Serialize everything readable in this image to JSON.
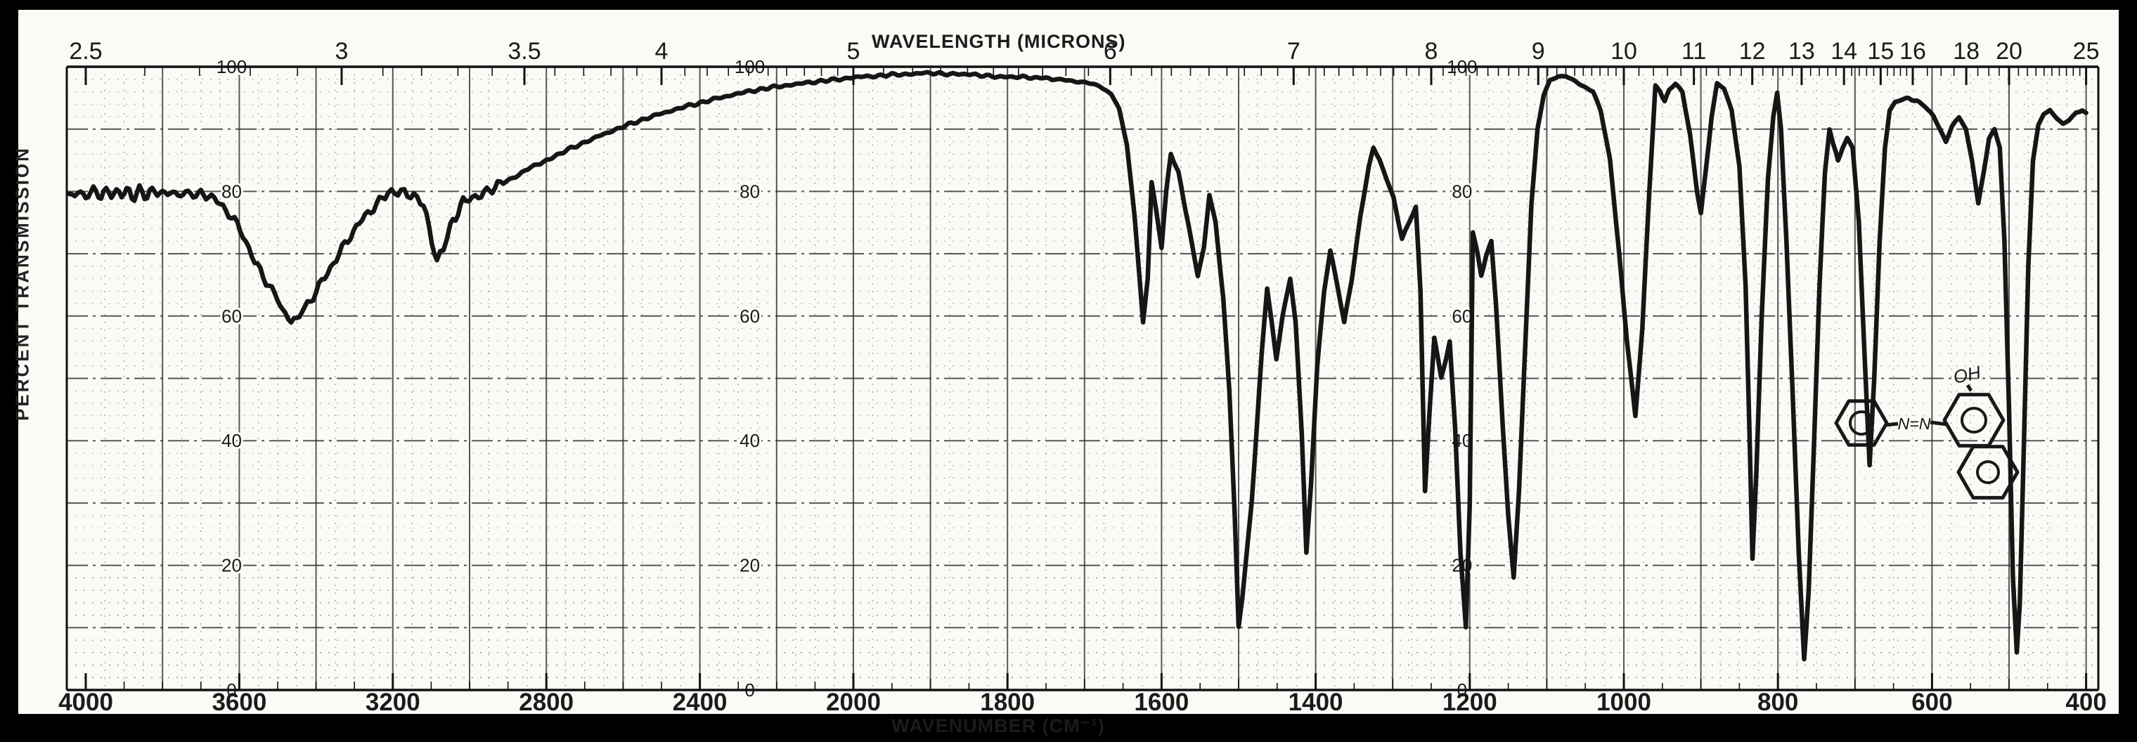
{
  "colors": {
    "paper": "#fbfaf6",
    "surround": "#000000",
    "trace": "#161616",
    "grid_major": "#2e2e2e",
    "grid_minor": "#555555",
    "label_ink": "#1b1b1b"
  },
  "chart_data": {
    "type": "line",
    "title_top": "WAVELENGTH (MICRONS)",
    "title_bottom": "WAVENUMBER (CM⁻¹)",
    "ylabel": "PERCENT TRANSMISSION",
    "grid": "on",
    "xlim_wavenumber": [
      4000,
      400
    ],
    "ylim": [
      0,
      100
    ],
    "x_scale_note": "linear in wavenumber, chart expands 2x at 2000 cm-1",
    "scale_change_at": 2000,
    "x_axis_top_microns": [
      2.5,
      3,
      3.5,
      4,
      5,
      6,
      7,
      8,
      9,
      10,
      11,
      12,
      13,
      14,
      15,
      16,
      18,
      20,
      25
    ],
    "x_axis_bottom_wavenumbers": [
      4000,
      3600,
      3200,
      2800,
      2400,
      2000,
      1800,
      1600,
      1400,
      1200,
      1000,
      800,
      600,
      400
    ],
    "y_tick_labels": [
      100,
      80,
      60,
      40,
      20,
      0
    ],
    "y_label_column_wavenumbers": [
      3620,
      2270,
      1210
    ],
    "major_absorption_bands_cm1": [
      [
        3465,
        59
      ],
      [
        3085,
        68
      ],
      [
        1624,
        59
      ],
      [
        1600,
        71
      ],
      [
        1553,
        66
      ],
      [
        1500,
        10
      ],
      [
        1451,
        53
      ],
      [
        1412,
        22
      ],
      [
        1363,
        59
      ],
      [
        1288,
        72
      ],
      [
        1258,
        32
      ],
      [
        1237,
        50
      ],
      [
        1205,
        10
      ],
      [
        1143,
        18
      ],
      [
        985,
        44
      ],
      [
        900,
        76
      ],
      [
        833,
        21
      ],
      [
        766,
        5
      ],
      [
        681,
        36
      ],
      [
        582,
        88
      ],
      [
        540,
        78
      ],
      [
        490,
        6
      ]
    ],
    "series": [
      {
        "name": "IR transmission trace",
        "points": [
          [
            4045,
            79
          ],
          [
            4020,
            79.8
          ],
          [
            4000,
            79.2
          ],
          [
            3980,
            80.2
          ],
          [
            3960,
            79.3
          ],
          [
            3940,
            80.1
          ],
          [
            3920,
            79.4
          ],
          [
            3900,
            80.2
          ],
          [
            3880,
            79.2
          ],
          [
            3860,
            80.0
          ],
          [
            3840,
            79.4
          ],
          [
            3820,
            80.2
          ],
          [
            3800,
            79.5
          ],
          [
            3780,
            80.0
          ],
          [
            3760,
            79.3
          ],
          [
            3740,
            79.9
          ],
          [
            3720,
            79.4
          ],
          [
            3700,
            79.7
          ],
          [
            3680,
            79.2
          ],
          [
            3650,
            77.8
          ],
          [
            3620,
            75.8
          ],
          [
            3590,
            72.8
          ],
          [
            3560,
            68.5
          ],
          [
            3530,
            65.5
          ],
          [
            3500,
            62.5
          ],
          [
            3480,
            60.3
          ],
          [
            3465,
            59.2
          ],
          [
            3450,
            59.7
          ],
          [
            3430,
            61.2
          ],
          [
            3400,
            64.0
          ],
          [
            3370,
            67.0
          ],
          [
            3340,
            70.0
          ],
          [
            3310,
            73.0
          ],
          [
            3280,
            75.5
          ],
          [
            3250,
            77.5
          ],
          [
            3220,
            79.2
          ],
          [
            3195,
            80.2
          ],
          [
            3170,
            80.1
          ],
          [
            3145,
            79.4
          ],
          [
            3120,
            77.8
          ],
          [
            3105,
            74.0
          ],
          [
            3085,
            68.5
          ],
          [
            3068,
            70.8
          ],
          [
            3050,
            74.0
          ],
          [
            3030,
            77.0
          ],
          [
            3010,
            78.6
          ],
          [
            2985,
            79.4
          ],
          [
            2955,
            80.0
          ],
          [
            2920,
            81.0
          ],
          [
            2880,
            82.5
          ],
          [
            2840,
            83.8
          ],
          [
            2800,
            85.0
          ],
          [
            2750,
            86.5
          ],
          [
            2700,
            87.9
          ],
          [
            2650,
            89.2
          ],
          [
            2600,
            90.4
          ],
          [
            2550,
            91.5
          ],
          [
            2500,
            92.5
          ],
          [
            2450,
            93.4
          ],
          [
            2400,
            94.2
          ],
          [
            2350,
            95.0
          ],
          [
            2300,
            95.7
          ],
          [
            2250,
            96.3
          ],
          [
            2200,
            96.8
          ],
          [
            2150,
            97.2
          ],
          [
            2100,
            97.6
          ],
          [
            2050,
            97.9
          ],
          [
            2000,
            98.3
          ],
          [
            1950,
            98.7
          ],
          [
            1900,
            99.0
          ],
          [
            1860,
            98.8
          ],
          [
            1820,
            98.5
          ],
          [
            1780,
            98.3
          ],
          [
            1750,
            98.1
          ],
          [
            1720,
            97.8
          ],
          [
            1700,
            97.5
          ],
          [
            1680,
            96.9
          ],
          [
            1665,
            95.6
          ],
          [
            1655,
            93.2
          ],
          [
            1645,
            87.5
          ],
          [
            1635,
            76.0
          ],
          [
            1624,
            59.0
          ],
          [
            1618,
            66.0
          ],
          [
            1613,
            81.5
          ],
          [
            1607,
            77.0
          ],
          [
            1600,
            71.0
          ],
          [
            1594,
            80.0
          ],
          [
            1588,
            86.0
          ],
          [
            1578,
            83.0
          ],
          [
            1565,
            74.5
          ],
          [
            1553,
            66.5
          ],
          [
            1545,
            71.0
          ],
          [
            1538,
            79.5
          ],
          [
            1530,
            75.0
          ],
          [
            1520,
            63.0
          ],
          [
            1512,
            48.0
          ],
          [
            1505,
            28.0
          ],
          [
            1500,
            10.0
          ],
          [
            1495,
            15.0
          ],
          [
            1488,
            24.0
          ],
          [
            1483,
            30.0
          ],
          [
            1477,
            41.0
          ],
          [
            1470,
            54.0
          ],
          [
            1463,
            64.5
          ],
          [
            1457,
            59.0
          ],
          [
            1451,
            53.0
          ],
          [
            1443,
            60.0
          ],
          [
            1433,
            66.0
          ],
          [
            1426,
            59.0
          ],
          [
            1418,
            41.0
          ],
          [
            1412,
            22.0
          ],
          [
            1406,
            33.0
          ],
          [
            1398,
            52.0
          ],
          [
            1389,
            64.0
          ],
          [
            1381,
            70.5
          ],
          [
            1372,
            65.0
          ],
          [
            1363,
            59.0
          ],
          [
            1353,
            66.0
          ],
          [
            1342,
            76.0
          ],
          [
            1331,
            84.0
          ],
          [
            1325,
            87.0
          ],
          [
            1317,
            85.0
          ],
          [
            1308,
            82.0
          ],
          [
            1299,
            79.0
          ],
          [
            1288,
            72.5
          ],
          [
            1279,
            75.0
          ],
          [
            1270,
            77.5
          ],
          [
            1264,
            64.0
          ],
          [
            1258,
            32.0
          ],
          [
            1252,
            45.0
          ],
          [
            1246,
            56.5
          ],
          [
            1241,
            53.0
          ],
          [
            1237,
            50.0
          ],
          [
            1231,
            53.0
          ],
          [
            1226,
            56.0
          ],
          [
            1219,
            42.0
          ],
          [
            1212,
            22.0
          ],
          [
            1205,
            10.0
          ],
          [
            1200,
            30.0
          ],
          [
            1196,
            73.5
          ],
          [
            1190,
            70.0
          ],
          [
            1185,
            66.5
          ],
          [
            1179,
            69.5
          ],
          [
            1172,
            72.0
          ],
          [
            1166,
            62.0
          ],
          [
            1157,
            42.0
          ],
          [
            1150,
            28.0
          ],
          [
            1143,
            18.0
          ],
          [
            1136,
            32.0
          ],
          [
            1128,
            55.0
          ],
          [
            1120,
            78.0
          ],
          [
            1112,
            90.0
          ],
          [
            1104,
            95.5
          ],
          [
            1096,
            97.8
          ],
          [
            1085,
            98.4
          ],
          [
            1075,
            98.5
          ],
          [
            1062,
            97.6
          ],
          [
            1048,
            96.5
          ],
          [
            1040,
            96.0
          ],
          [
            1030,
            93.0
          ],
          [
            1018,
            85.0
          ],
          [
            1006,
            70.0
          ],
          [
            996,
            56.0
          ],
          [
            985,
            44.0
          ],
          [
            976,
            58.0
          ],
          [
            967,
            80.0
          ],
          [
            959,
            97.0
          ],
          [
            953,
            96.0
          ],
          [
            947,
            94.5
          ],
          [
            941,
            96.3
          ],
          [
            933,
            97.4
          ],
          [
            924,
            96.0
          ],
          [
            914,
            89.0
          ],
          [
            905,
            80.0
          ],
          [
            900,
            76.5
          ],
          [
            894,
            83.0
          ],
          [
            886,
            92.0
          ],
          [
            879,
            97.3
          ],
          [
            870,
            96.5
          ],
          [
            860,
            93.0
          ],
          [
            850,
            84.0
          ],
          [
            842,
            65.0
          ],
          [
            837,
            42.0
          ],
          [
            833,
            21.0
          ],
          [
            828,
            35.0
          ],
          [
            821,
            60.0
          ],
          [
            813,
            82.0
          ],
          [
            806,
            92.0
          ],
          [
            801,
            95.8
          ],
          [
            796,
            90.0
          ],
          [
            789,
            72.0
          ],
          [
            781,
            48.0
          ],
          [
            773,
            22.0
          ],
          [
            766,
            5.0
          ],
          [
            760,
            16.0
          ],
          [
            753,
            40.0
          ],
          [
            746,
            65.0
          ],
          [
            739,
            83.0
          ],
          [
            733,
            90.0
          ],
          [
            728,
            87.5
          ],
          [
            722,
            85.0
          ],
          [
            716,
            87.0
          ],
          [
            710,
            88.5
          ],
          [
            703,
            87.0
          ],
          [
            695,
            75.0
          ],
          [
            688,
            55.0
          ],
          [
            681,
            36.0
          ],
          [
            675,
            50.0
          ],
          [
            668,
            72.0
          ],
          [
            661,
            87.0
          ],
          [
            655,
            93.0
          ],
          [
            648,
            94.3
          ],
          [
            640,
            94.8
          ],
          [
            630,
            94.9
          ],
          [
            620,
            94.5
          ],
          [
            610,
            93.8
          ],
          [
            598,
            92.0
          ],
          [
            590,
            90.0
          ],
          [
            582,
            88.0
          ],
          [
            574,
            90.5
          ],
          [
            565,
            92.0
          ],
          [
            556,
            90.0
          ],
          [
            548,
            85.0
          ],
          [
            540,
            78.0
          ],
          [
            533,
            83.0
          ],
          [
            526,
            88.5
          ],
          [
            519,
            90.0
          ],
          [
            512,
            87.0
          ],
          [
            506,
            72.0
          ],
          [
            500,
            45.0
          ],
          [
            495,
            18.0
          ],
          [
            490,
            6.0
          ],
          [
            486,
            14.0
          ],
          [
            481,
            38.0
          ],
          [
            475,
            68.0
          ],
          [
            469,
            85.0
          ],
          [
            462,
            90.5
          ],
          [
            455,
            92.5
          ],
          [
            447,
            93.0
          ],
          [
            438,
            91.8
          ],
          [
            430,
            90.8
          ],
          [
            422,
            91.5
          ],
          [
            413,
            92.6
          ],
          [
            405,
            93.0
          ],
          [
            400,
            92.6
          ]
        ]
      }
    ],
    "annotation": {
      "type": "hand-drawn chemical structure",
      "labels": [
        "OH",
        "N=N"
      ],
      "description": "benzene ring joined by N=N to a naphthol (two fused rings, OH on upper ring)",
      "position_wavenumber": 760,
      "position_percent_t": 42
    }
  }
}
